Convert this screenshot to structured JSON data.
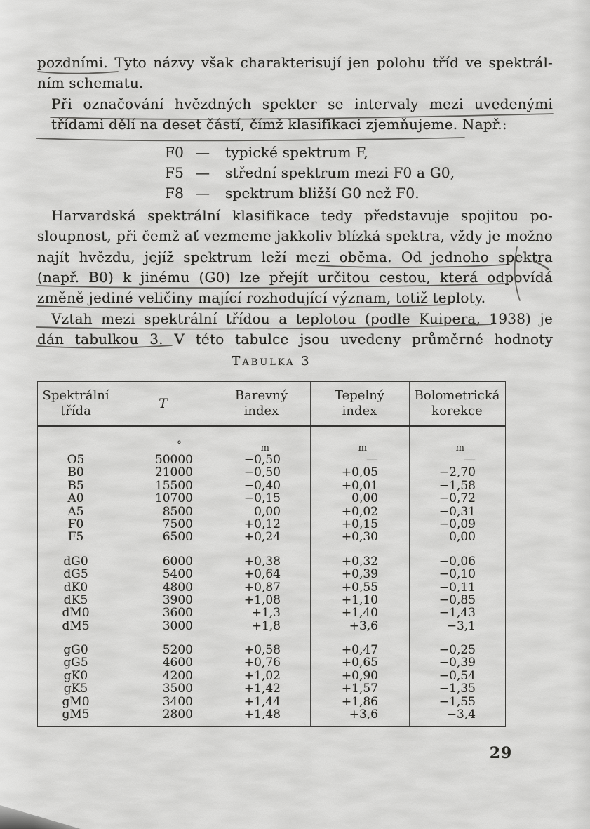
{
  "document": {
    "page_number": "29",
    "paragraph1": {
      "line1": "pozdními. Tyto názvy však charakterisují jen polohu tříd ve spektrál-",
      "line2": "ním schematu."
    },
    "paragraph2": {
      "line1": "Při označování hvězdných spekter se intervaly mezi uvedenými",
      "line2": "třídami dělí na deset částí, čímž klasifikaci zjemňujeme. Např.:"
    },
    "list": [
      {
        "label": "F0",
        "dash": "—",
        "text": "typické spektrum F,"
      },
      {
        "label": "F5",
        "dash": "—",
        "text": "střední spektrum mezi F0 a G0,"
      },
      {
        "label": "F8",
        "dash": "—",
        "text": "spektrum bližší G0 než F0."
      }
    ],
    "paragraph3": {
      "line1": "Harvardská spektrální klasifikace tedy představuje spojitou po-",
      "line2": "sloupnost, při čemž ať vezmeme jakkoliv blízká spektra, vždy je možno",
      "line3": "najít hvězdu, jejíž spektrum leží mezi oběma. Od jednoho spektra",
      "line4": "(např. B0) k jinému (G0) lze přejít určitou cestou, která odpovídá",
      "line5": "změně jediné veličiny mající rozhodující význam, totiž teploty."
    },
    "paragraph4": {
      "line1": "Vztah mezi spektrální třídou a teplotou (podle Kuipera, 1938) je",
      "line2": "dán tabulkou 3. V této tabulce jsou uvedeny průměrné hodnoty"
    },
    "table": {
      "title": "Tabulka 3",
      "columns": [
        "Spektrální třída",
        "T",
        "Barevný index",
        "Tepelný index",
        "Bolometrická korekce"
      ],
      "units": [
        "",
        "°",
        "m",
        "m",
        "m"
      ],
      "groups": [
        [
          [
            "O5",
            "50000",
            "−0,50",
            "—",
            "—"
          ],
          [
            "B0",
            "21000",
            "−0,50",
            "+0,05",
            "−2,70"
          ],
          [
            "B5",
            "15500",
            "−0,40",
            "+0,01",
            "−1,58"
          ],
          [
            "A0",
            "10700",
            "−0,15",
            "0,00",
            "−0,72"
          ],
          [
            "A5",
            "8500",
            "0,00",
            "+0,02",
            "−0,31"
          ],
          [
            "F0",
            "7500",
            "+0,12",
            "+0,15",
            "−0,09"
          ],
          [
            "F5",
            "6500",
            "+0,24",
            "+0,30",
            "0,00"
          ]
        ],
        [
          [
            "dG0",
            "6000",
            "+0,38",
            "+0,32",
            "−0,06"
          ],
          [
            "dG5",
            "5400",
            "+0,64",
            "+0,39",
            "−0,10"
          ],
          [
            "dK0",
            "4800",
            "+0,87",
            "+0,55",
            "−0,11"
          ],
          [
            "dK5",
            "3900",
            "+1,08",
            "+1,10",
            "−0,85"
          ],
          [
            "dM0",
            "3600",
            "+1,3",
            "+1,40",
            "−1,43"
          ],
          [
            "dM5",
            "3000",
            "+1,8",
            "+3,6",
            "−3,1"
          ]
        ],
        [
          [
            "gG0",
            "5200",
            "+0,58",
            "+0,47",
            "−0,25"
          ],
          [
            "gG5",
            "4600",
            "+0,76",
            "+0,65",
            "−0,39"
          ],
          [
            "gK0",
            "4200",
            "+1,02",
            "+0,90",
            "−0,54"
          ],
          [
            "gK5",
            "3500",
            "+1,42",
            "+1,57",
            "−1,35"
          ],
          [
            "gM0",
            "3400",
            "+1,44",
            "+1,86",
            "−1,55"
          ],
          [
            "gM5",
            "2800",
            "+1,48",
            "+3,6",
            "−3,4"
          ]
        ]
      ]
    }
  }
}
